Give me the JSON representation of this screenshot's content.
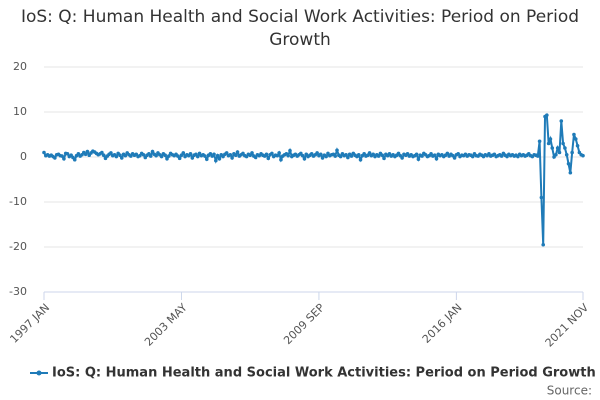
{
  "chart_data": {
    "type": "line",
    "title": "IoS: Q: Human Health and Social Work Activities: Period on Period Growth",
    "source_label": "Source:",
    "categories": [
      "1997 JAN",
      null,
      null,
      null,
      null,
      null,
      null,
      null,
      null,
      null,
      null,
      null,
      null,
      null,
      null,
      null,
      null,
      null,
      null,
      null,
      null,
      null,
      null,
      null,
      null,
      null,
      null,
      null,
      null,
      null,
      null,
      null,
      null,
      null,
      null,
      null,
      null,
      null,
      null,
      null,
      null,
      null,
      null,
      null,
      null,
      null,
      null,
      null,
      null,
      null,
      null,
      null,
      null,
      null,
      null,
      null,
      null,
      null,
      null,
      null,
      null,
      null,
      null,
      null,
      null,
      null,
      null,
      null,
      null,
      null,
      null,
      null,
      null,
      null,
      null,
      null,
      "2003 MAY",
      null,
      null,
      null,
      null,
      null,
      null,
      null,
      null,
      null,
      null,
      null,
      null,
      null,
      null,
      null,
      null,
      null,
      null,
      null,
      null,
      null,
      null,
      null,
      null,
      null,
      null,
      null,
      null,
      null,
      null,
      null,
      null,
      null,
      null,
      null,
      null,
      null,
      null,
      null,
      null,
      null,
      null,
      null,
      null,
      null,
      null,
      null,
      null,
      null,
      null,
      null,
      null,
      null,
      null,
      null,
      null,
      null,
      null,
      null,
      null,
      null,
      null,
      null,
      null,
      null,
      null,
      null,
      null,
      null,
      null,
      null,
      null,
      null,
      null,
      null,
      "2009 SEP",
      null,
      null,
      null,
      null,
      null,
      null,
      null,
      null,
      null,
      null,
      null,
      null,
      null,
      null,
      null,
      null,
      null,
      null,
      null,
      null,
      null,
      null,
      null,
      null,
      null,
      null,
      null,
      null,
      null,
      null,
      null,
      null,
      null,
      null,
      null,
      null,
      null,
      null,
      null,
      null,
      null,
      null,
      null,
      null,
      null,
      null,
      null,
      null,
      null,
      null,
      null,
      null,
      null,
      null,
      null,
      null,
      null,
      null,
      null,
      null,
      null,
      null,
      null,
      null,
      null,
      null,
      null,
      null,
      null,
      null,
      null,
      null,
      null,
      null,
      null,
      "2016 JAN",
      null,
      null,
      null,
      null,
      null,
      null,
      null,
      null,
      null,
      null,
      null,
      null,
      null,
      null,
      null,
      null,
      null,
      null,
      null,
      null,
      null,
      null,
      null,
      null,
      null,
      null,
      null,
      null,
      null,
      null,
      null,
      null,
      null,
      null,
      null,
      null,
      null,
      null,
      null,
      null,
      null,
      null,
      null,
      null,
      null,
      null,
      null,
      null,
      null,
      null,
      null,
      null,
      null,
      null,
      null,
      null,
      null,
      null,
      null,
      null,
      null,
      null,
      null,
      null,
      null,
      null,
      null,
      null,
      null,
      "2021 NOV"
    ],
    "series": [
      {
        "name": "IoS: Q: Human Health and Social Work Activities: Period on Period Growth",
        "color": "#1f7bb8",
        "values": [
          1.0,
          0.3,
          0.5,
          0.2,
          0.4,
          0.1,
          -0.2,
          0.5,
          0.6,
          0.3,
          0.2,
          -0.4,
          0.8,
          0.7,
          0.1,
          0.4,
          -0.1,
          -0.6,
          0.3,
          0.7,
          0.2,
          0.5,
          1.0,
          0.6,
          1.2,
          0.4,
          0.9,
          1.3,
          1.1,
          0.8,
          0.5,
          0.7,
          1.0,
          0.4,
          -0.3,
          0.2,
          0.6,
          0.9,
          0.3,
          0.5,
          0.1,
          0.8,
          0.4,
          -0.2,
          0.6,
          0.3,
          0.9,
          0.5,
          0.2,
          0.7,
          0.4,
          0.6,
          0.1,
          0.3,
          0.8,
          0.5,
          -0.1,
          0.4,
          0.7,
          0.2,
          1.2,
          0.6,
          0.3,
          0.9,
          0.5,
          0.1,
          0.7,
          0.4,
          -0.4,
          0.2,
          0.8,
          0.5,
          0.3,
          0.6,
          0.2,
          -0.3,
          0.4,
          0.9,
          0.1,
          0.5,
          0.3,
          0.7,
          -0.2,
          0.4,
          0.6,
          0.1,
          0.8,
          0.3,
          0.5,
          0.2,
          -0.5,
          0.4,
          0.7,
          0.2,
          0.6,
          -0.8,
          0.3,
          -0.4,
          0.5,
          0.1,
          0.6,
          0.9,
          0.3,
          0.5,
          -0.2,
          0.7,
          0.4,
          1.1,
          0.2,
          0.5,
          0.8,
          0.3,
          0.1,
          0.6,
          0.4,
          0.9,
          0.2,
          -0.1,
          0.5,
          0.3,
          0.7,
          0.4,
          0.2,
          0.6,
          -0.3,
          0.5,
          0.8,
          0.1,
          0.4,
          0.3,
          0.9,
          -0.6,
          0.2,
          0.5,
          0.7,
          0.3,
          1.4,
          0.1,
          0.4,
          0.6,
          0.2,
          0.5,
          0.8,
          0.3,
          -0.4,
          0.6,
          0.1,
          0.4,
          0.7,
          0.2,
          0.5,
          0.9,
          0.3,
          0.6,
          -0.2,
          0.4,
          0.1,
          0.8,
          0.3,
          0.5,
          0.6,
          0.2,
          1.5,
          0.4,
          0.1,
          0.7,
          0.3,
          0.5,
          -0.1,
          0.6,
          0.2,
          0.8,
          0.4,
          0.1,
          0.5,
          -0.6,
          0.3,
          0.7,
          0.2,
          0.4,
          0.9,
          0.3,
          0.6,
          0.1,
          0.5,
          0.2,
          0.8,
          0.4,
          -0.3,
          0.6,
          0.3,
          0.7,
          0.2,
          0.5,
          0.1,
          0.4,
          0.8,
          0.3,
          -0.2,
          0.6,
          0.4,
          0.7,
          0.2,
          0.5,
          0.1,
          0.3,
          0.6,
          -0.5,
          0.4,
          0.2,
          0.8,
          0.5,
          0.1,
          0.3,
          0.7,
          0.2,
          0.4,
          -0.4,
          0.6,
          0.3,
          0.5,
          0.1,
          0.4,
          0.8,
          0.2,
          0.6,
          0.3,
          -0.2,
          0.5,
          0.7,
          0.1,
          0.4,
          0.3,
          0.6,
          0.2,
          0.5,
          0.4,
          0.1,
          0.7,
          0.3,
          0.2,
          0.6,
          0.4,
          0.1,
          0.5,
          0.3,
          0.7,
          0.2,
          0.4,
          0.6,
          0.1,
          0.3,
          0.5,
          0.2,
          0.8,
          0.4,
          0.1,
          0.6,
          0.3,
          0.5,
          0.2,
          0.4,
          0.1,
          0.6,
          0.3,
          0.5,
          0.2,
          0.4,
          0.7,
          0.3,
          0.1,
          0.5,
          0.4,
          0.2,
          3.5,
          -9,
          -19.5,
          9,
          9.3,
          3,
          4,
          2,
          0,
          0.5,
          2,
          1,
          8,
          3,
          2,
          0.5,
          -1.5,
          -3.5,
          1,
          5,
          4,
          2.5,
          1,
          0.5,
          0.3
        ]
      }
    ],
    "ylim": [
      -30,
      20
    ],
    "yticks": [
      -30,
      -20,
      -10,
      0,
      10,
      20
    ],
    "grid": true
  }
}
